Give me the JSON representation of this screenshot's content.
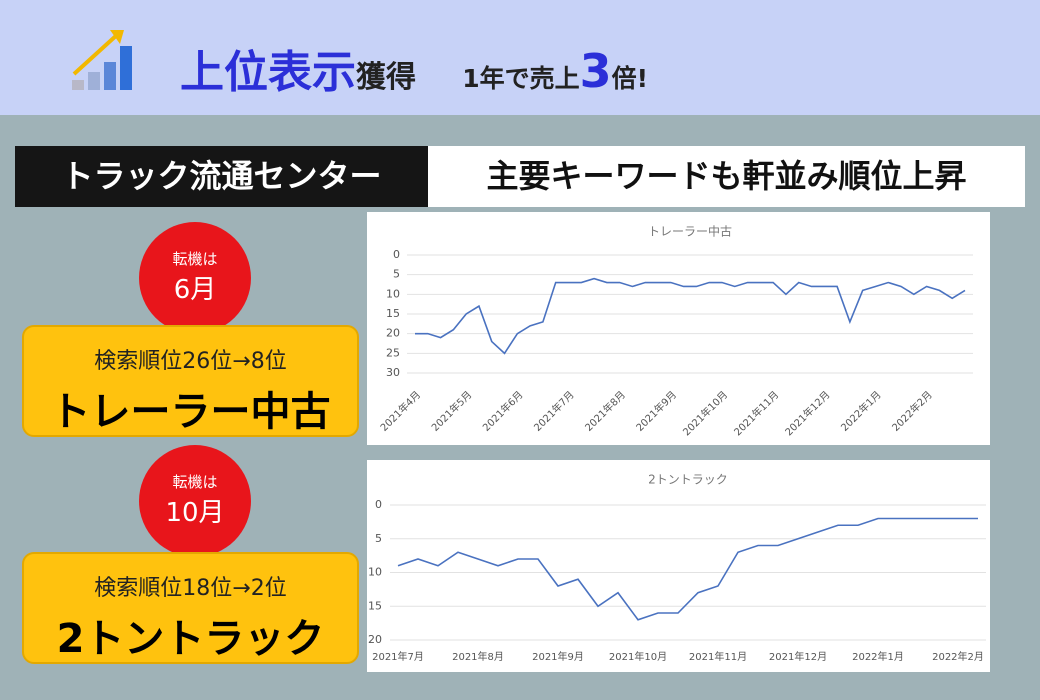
{
  "header": {
    "title_main": "上位表示",
    "title_sub": "獲得",
    "tagline_1": "1年で売上",
    "tagline_num": "3",
    "tagline_2": "倍!"
  },
  "banner": {
    "left": "トラック流通センター",
    "right": "主要キーワードも軒並み順位上昇"
  },
  "cases": [
    {
      "turn_label": "転機は",
      "turn_month": "6月",
      "rank_change": "検索順位26位→8位",
      "keyword": "トレーラー中古"
    },
    {
      "turn_label": "転機は",
      "turn_month": "10月",
      "rank_change": "検索順位18位→2位",
      "keyword": "2トントラック"
    }
  ],
  "chart_data": [
    {
      "type": "line",
      "title": "トレーラー中古",
      "categories": [
        "2021年4月",
        null,
        null,
        null,
        "2021年5月",
        null,
        null,
        null,
        "2021年6月",
        null,
        null,
        null,
        "2021年7月",
        null,
        null,
        null,
        "2021年8月",
        null,
        null,
        null,
        "2021年9月",
        null,
        null,
        null,
        "2021年10月",
        null,
        null,
        null,
        "2021年11月",
        null,
        null,
        null,
        "2021年12月",
        null,
        null,
        null,
        "2022年1月",
        null,
        null,
        null,
        "2022年2月",
        null,
        null,
        null
      ],
      "color": "#4a72c0",
      "values": [
        20,
        20,
        21,
        19,
        15,
        13,
        22,
        25,
        20,
        18,
        17,
        7,
        7,
        7,
        6,
        7,
        7,
        8,
        7,
        7,
        7,
        8,
        8,
        7,
        7,
        8,
        7,
        7,
        7,
        10,
        7,
        8,
        8,
        8,
        17,
        9,
        8,
        7,
        8,
        10,
        8,
        9,
        11,
        9
      ],
      "ylim": [
        0,
        30
      ],
      "y_reversed": true,
      "yticks": [
        0,
        5,
        10,
        15,
        20,
        25,
        30
      ],
      "grid": true
    },
    {
      "type": "line",
      "title": "2トントラック",
      "categories": [
        "2021年7月",
        null,
        null,
        null,
        "2021年8月",
        null,
        null,
        null,
        "2021年9月",
        null,
        null,
        null,
        "2021年10月",
        null,
        null,
        null,
        "2021年11月",
        null,
        null,
        null,
        "2021年12月",
        null,
        null,
        null,
        "2022年1月",
        null,
        null,
        null,
        "2022年2月",
        null
      ],
      "color": "#4a72c0",
      "values": [
        9,
        8,
        9,
        7,
        8,
        9,
        8,
        8,
        12,
        11,
        15,
        13,
        17,
        16,
        16,
        13,
        12,
        7,
        6,
        6,
        5,
        4,
        3,
        3,
        2,
        2,
        2,
        2,
        2,
        2
      ],
      "ylim": [
        0,
        20
      ],
      "y_reversed": true,
      "yticks": [
        0,
        5,
        10,
        15,
        20
      ],
      "grid": true
    }
  ]
}
